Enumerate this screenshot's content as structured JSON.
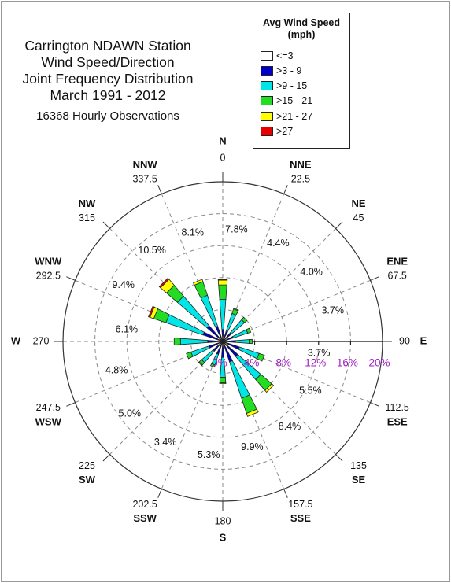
{
  "chart_data": {
    "type": "polar-bar",
    "title": [
      "Carrington NDAWN Station",
      "Wind Speed/Direction",
      "Joint Frequency Distribution",
      "March 1991 - 2012"
    ],
    "subtitle": "16368 Hourly Observations",
    "legend": {
      "title": [
        "Avg Wind Speed",
        "(mph)"
      ],
      "placement": "top-right",
      "bins": [
        {
          "label": "<=3",
          "color": "#ffffff"
        },
        {
          "label": ">3 - 9",
          "color": "#0000c8"
        },
        {
          "label": ">9 - 15",
          "color": "#00e6e6"
        },
        {
          "label": ">15 - 21",
          "color": "#22dd22"
        },
        {
          "label": ">21 - 27",
          "color": "#ffff00"
        },
        {
          "label": ">27",
          "color": "#e60000"
        }
      ]
    },
    "radial_axis": {
      "max": 20,
      "ticks": [
        0,
        4,
        8,
        12,
        16,
        20
      ],
      "labels": [
        "0%",
        "4%",
        "8%",
        "12%",
        "16%",
        "20%"
      ],
      "tick_color": "#a020c0"
    },
    "directions": [
      {
        "compass": "N",
        "degrees": "0",
        "angle": 0,
        "percent": "7.8%",
        "segments": [
          0,
          1.5,
          3.8,
          1.8,
          0.6,
          0.1
        ]
      },
      {
        "compass": "NNE",
        "degrees": "22.5",
        "angle": 22.5,
        "percent": "4.4%",
        "segments": [
          0,
          1.3,
          2.4,
          0.6,
          0.1,
          0
        ]
      },
      {
        "compass": "NE",
        "degrees": "45",
        "angle": 45,
        "percent": "4.0%",
        "segments": [
          0,
          1.4,
          2.2,
          0.4,
          0,
          0
        ]
      },
      {
        "compass": "ENE",
        "degrees": "67.5",
        "angle": 67.5,
        "percent": "3.7%",
        "segments": [
          0,
          1.4,
          1.9,
          0.4,
          0,
          0
        ]
      },
      {
        "compass": "E",
        "degrees": "90",
        "angle": 90,
        "percent": "3.7%",
        "segments": [
          0,
          1.6,
          1.7,
          0.4,
          0,
          0
        ]
      },
      {
        "compass": "ESE",
        "degrees": "112.5",
        "angle": 112.5,
        "percent": "5.5%",
        "segments": [
          0,
          2.2,
          2.6,
          0.7,
          0,
          0
        ]
      },
      {
        "compass": "SE",
        "degrees": "135",
        "angle": 135,
        "percent": "8.4%",
        "segments": [
          0,
          2.5,
          3.8,
          1.8,
          0.3,
          0
        ]
      },
      {
        "compass": "SSE",
        "degrees": "157.5",
        "angle": 157.5,
        "percent": "9.9%",
        "segments": [
          0,
          2.7,
          4.8,
          2.0,
          0.4,
          0
        ]
      },
      {
        "compass": "S",
        "degrees": "180",
        "angle": 180,
        "percent": "5.3%",
        "segments": [
          0,
          2.0,
          2.5,
          0.7,
          0.1,
          0
        ]
      },
      {
        "compass": "SSW",
        "degrees": "202.5",
        "angle": 202.5,
        "percent": "3.4%",
        "segments": [
          0,
          1.7,
          1.4,
          0.3,
          0,
          0
        ]
      },
      {
        "compass": "SW",
        "degrees": "225",
        "angle": 225,
        "percent": "5.0%",
        "segments": [
          0,
          1.6,
          1.9,
          0.4,
          0.1,
          0
        ]
      },
      {
        "compass": "WSW",
        "degrees": "247.5",
        "angle": 247.5,
        "percent": "4.8%",
        "segments": [
          0,
          1.8,
          2.4,
          0.6,
          0,
          0
        ]
      },
      {
        "compass": "W",
        "degrees": "270",
        "angle": 270,
        "percent": "6.1%",
        "segments": [
          0,
          1.9,
          3.4,
          0.8,
          0,
          0
        ]
      },
      {
        "compass": "WNW",
        "degrees": "292.5",
        "angle": 292.5,
        "percent": "9.4%",
        "segments": [
          0,
          2.6,
          4.9,
          1.6,
          0.5,
          0.2
        ]
      },
      {
        "compass": "NW",
        "degrees": "315",
        "angle": 315,
        "percent": "10.5%",
        "segments": [
          0,
          2.6,
          4.9,
          1.8,
          1.0,
          0.2
        ]
      },
      {
        "compass": "NNW",
        "degrees": "337.5",
        "angle": 337.5,
        "percent": "8.1%",
        "segments": [
          0,
          2.0,
          4.1,
          1.8,
          0.3,
          0
        ]
      }
    ],
    "grid": true
  }
}
